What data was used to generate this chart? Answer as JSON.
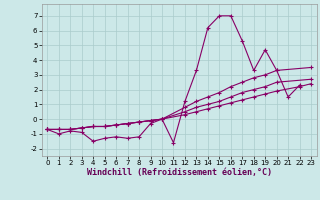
{
  "xlabel": "Windchill (Refroidissement éolien,°C)",
  "background_color": "#cce8e8",
  "grid_color": "#aacccc",
  "line_color": "#880066",
  "xlim": [
    -0.5,
    23.5
  ],
  "ylim": [
    -2.5,
    7.8
  ],
  "xticks": [
    0,
    1,
    2,
    3,
    4,
    5,
    6,
    7,
    8,
    9,
    10,
    11,
    12,
    13,
    14,
    15,
    16,
    17,
    18,
    19,
    20,
    21,
    22,
    23
  ],
  "yticks": [
    -2,
    -1,
    0,
    1,
    2,
    3,
    4,
    5,
    6,
    7
  ],
  "s1_x": [
    0,
    1,
    2,
    3,
    4,
    5,
    6,
    7,
    8,
    9,
    10,
    11,
    12,
    13,
    14,
    15,
    16,
    17,
    18,
    19,
    20,
    21,
    22
  ],
  "s1_y": [
    -0.7,
    -1.0,
    -0.8,
    -0.9,
    -1.5,
    -1.3,
    -1.2,
    -1.3,
    -1.2,
    -0.3,
    0.0,
    -1.6,
    1.2,
    3.3,
    6.2,
    7.0,
    7.0,
    5.3,
    3.3,
    4.7,
    3.3,
    1.5,
    2.3
  ],
  "s2_x": [
    0,
    1,
    2,
    3,
    4,
    5,
    6,
    7,
    8,
    9,
    10,
    12,
    13,
    14,
    15,
    16,
    17,
    18,
    19,
    20,
    23
  ],
  "s2_y": [
    -0.7,
    -0.7,
    -0.7,
    -0.6,
    -0.5,
    -0.5,
    -0.4,
    -0.3,
    -0.2,
    -0.1,
    0.0,
    0.8,
    1.2,
    1.5,
    1.8,
    2.2,
    2.5,
    2.8,
    3.0,
    3.3,
    3.5
  ],
  "s3_x": [
    0,
    1,
    2,
    3,
    4,
    5,
    6,
    7,
    8,
    9,
    10,
    12,
    13,
    14,
    15,
    16,
    17,
    18,
    19,
    20,
    23
  ],
  "s3_y": [
    -0.7,
    -0.7,
    -0.7,
    -0.6,
    -0.5,
    -0.5,
    -0.4,
    -0.3,
    -0.2,
    -0.1,
    0.0,
    0.5,
    0.8,
    1.0,
    1.2,
    1.5,
    1.8,
    2.0,
    2.2,
    2.5,
    2.7
  ],
  "s4_x": [
    0,
    1,
    2,
    3,
    4,
    5,
    6,
    7,
    8,
    9,
    10,
    12,
    13,
    14,
    15,
    16,
    17,
    18,
    19,
    20,
    22,
    23
  ],
  "s4_y": [
    -0.7,
    -0.7,
    -0.7,
    -0.6,
    -0.5,
    -0.5,
    -0.4,
    -0.3,
    -0.2,
    -0.1,
    0.0,
    0.3,
    0.5,
    0.7,
    0.9,
    1.1,
    1.3,
    1.5,
    1.7,
    1.9,
    2.2,
    2.4
  ],
  "tick_fontsize": 5,
  "xlabel_fontsize": 6,
  "marker_size": 3,
  "line_width": 0.8
}
